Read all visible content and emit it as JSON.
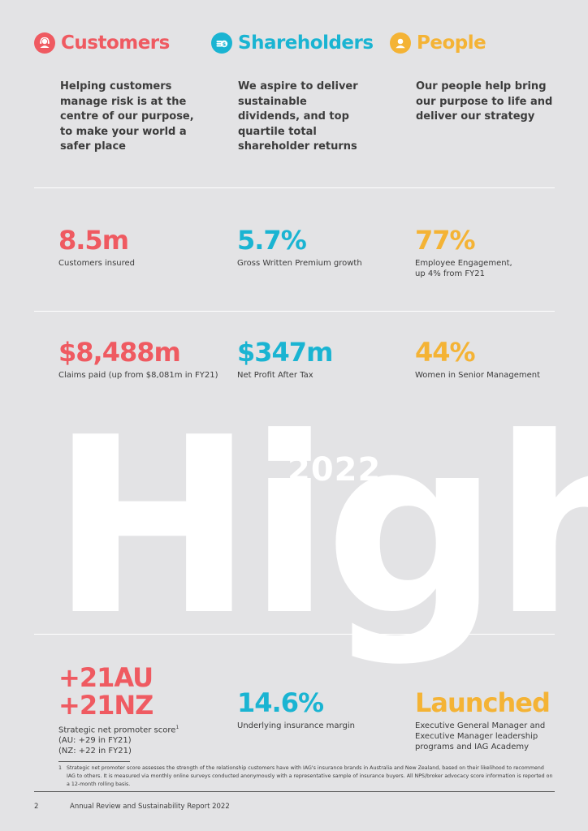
{
  "watermark": {
    "word": "Highl",
    "year": "2022"
  },
  "columns": [
    {
      "title": "Customers",
      "icon": "headset-person-icon",
      "intro": "Helping customers manage risk is at the centre of our purpose, to make your world a safer place"
    },
    {
      "title": "Shareholders",
      "icon": "coins-dollar-icon",
      "intro": "We aspire to deliver sustainable dividends, and top quartile total shareholder returns"
    },
    {
      "title": "People",
      "icon": "person-icon",
      "intro": "Our people help bring our purpose to life and deliver our strategy"
    }
  ],
  "stats": {
    "row1": [
      {
        "value": "8.5m",
        "label": "Customers insured"
      },
      {
        "value": "5.7%",
        "label": "Gross Written Premium growth"
      },
      {
        "value": "77%",
        "label": "Employee Engagement,\nup 4% from FY21"
      }
    ],
    "row2": [
      {
        "value": "$8,488m",
        "label": "Claims paid (up from $8,081m in FY21)"
      },
      {
        "value": "$347m",
        "label": "Net Profit After Tax"
      },
      {
        "value": "44%",
        "label": "Women in Senior Management"
      }
    ],
    "row3": [
      {
        "value": "+21AU\n+21NZ",
        "label": "Strategic net promoter score",
        "sup": "1",
        "sub": "(AU: +29 in FY21)\n(NZ: +22 in FY21)"
      },
      {
        "value": "14.6%",
        "label": "Underlying insurance margin"
      },
      {
        "value": "Launched",
        "label": "Executive General Manager and\nExecutive Manager leadership\nprograms and IAG Academy"
      }
    ]
  },
  "footnote": {
    "number": "1",
    "text": "Strategic net promoter score assesses the strength of the relationship customers have with IAG's insurance brands in Australia and New Zealand, based on their likelihood to recommend IAG to others. It is measured via monthly online surveys conducted anonymously with a representative sample of insurance buyers. All NPS/broker advocacy score information is reported on a 12-month rolling basis."
  },
  "footer": {
    "page_number": "2",
    "report_title": "Annual Review and Sustainability Report 2022"
  },
  "colors": {
    "customers": "#ef5a61",
    "shareholders": "#1ab4d2",
    "people": "#f4b335",
    "background": "#e3e3e5"
  }
}
